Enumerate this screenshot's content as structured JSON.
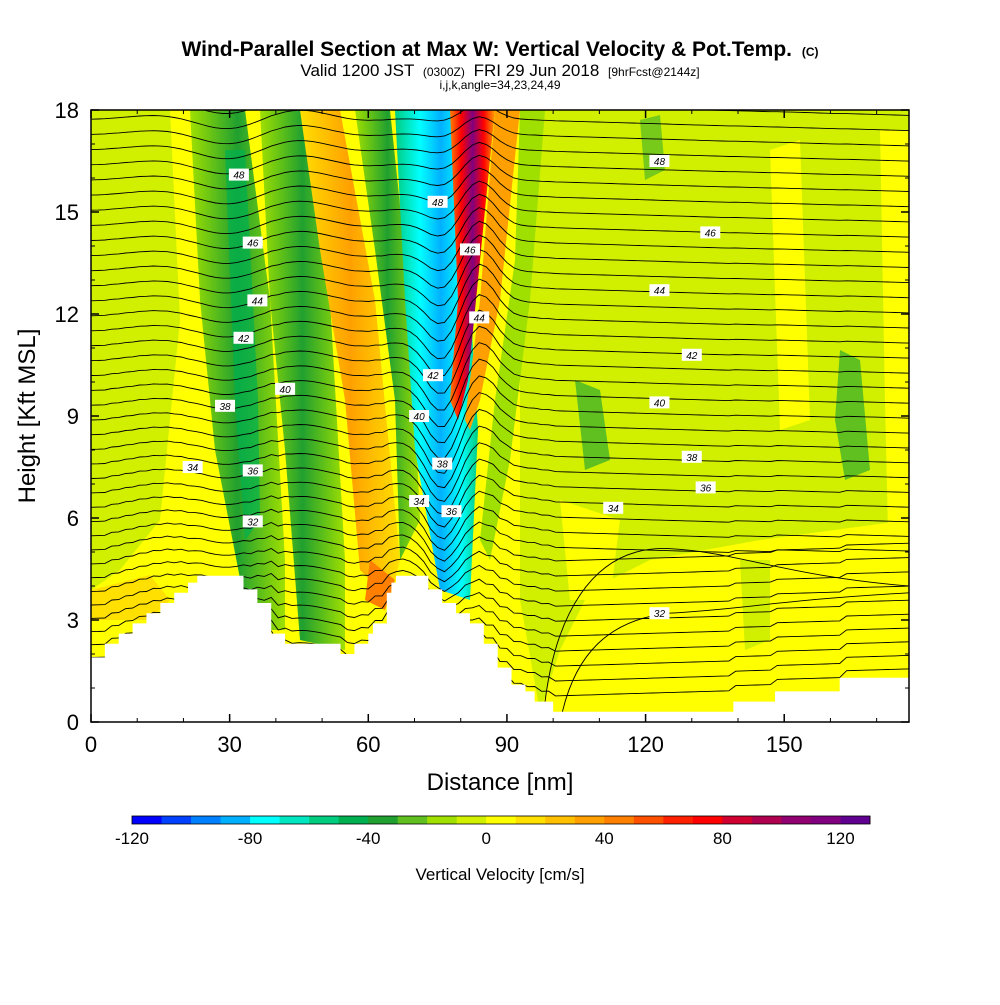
{
  "chart_data": {
    "type": "heatmap",
    "title": "Wind-Parallel Section at Max W: Vertical Velocity & Pot.Temp.",
    "title_mark": "(C)",
    "subtitle": {
      "prefix": "Valid 1200 JST",
      "utc": "(0300Z)",
      "date": "FRI 29 Jun 2018",
      "forecast": "[9hrFcst@2144z]"
    },
    "subtitle2": "i,j,k,angle=34,23,24,49",
    "xlabel": "Distance [nm]",
    "ylabel": "Height [Kft MSL]",
    "xlim": [
      0,
      177
    ],
    "ylim": [
      0,
      18
    ],
    "x_ticks": [
      0,
      30,
      60,
      90,
      120,
      150
    ],
    "y_ticks": [
      0,
      3,
      6,
      9,
      12,
      15,
      18
    ],
    "colorbar": {
      "label": "Vertical Velocity [cm/s]",
      "min": -120,
      "max": 130,
      "step": 10,
      "tick_values": [
        -120,
        -80,
        -40,
        0,
        40,
        80,
        120
      ],
      "colors": [
        "#0000ff",
        "#0040ff",
        "#0080ff",
        "#00b0ff",
        "#00ffff",
        "#00e6c0",
        "#00cc80",
        "#00b050",
        "#20a030",
        "#60c020",
        "#a0e000",
        "#d0f000",
        "#ffff00",
        "#ffe000",
        "#ffc000",
        "#ffa000",
        "#ff8000",
        "#ff5000",
        "#ff2000",
        "#ff0000",
        "#d00030",
        "#b00050",
        "#900070",
        "#800080",
        "#600090"
      ]
    },
    "velocity_bands": [
      {
        "x": [
          90,
          0
        ],
        "v": [
          -5,
          -5
        ]
      },
      {
        "x": [
          175,
          175
        ],
        "v": [
          -5,
          -5
        ]
      }
    ],
    "terrain_profile": {
      "x": [
        0,
        3,
        6,
        9,
        12,
        15,
        18,
        21,
        23,
        30,
        33,
        36,
        39,
        42,
        48,
        51,
        54,
        57,
        60,
        61,
        64,
        65,
        66,
        71,
        73,
        76,
        79,
        82,
        85,
        88,
        91,
        94,
        96,
        100,
        105,
        111,
        120,
        125,
        131,
        139,
        148,
        162,
        177
      ],
      "y": [
        1.9,
        2.3,
        2.6,
        2.9,
        3.2,
        3.5,
        3.8,
        4.1,
        4.3,
        4.3,
        3.9,
        3.5,
        2.6,
        2.3,
        2.3,
        2.3,
        2.0,
        2.3,
        2.6,
        2.9,
        3.8,
        4.1,
        4.3,
        4.3,
        3.9,
        3.5,
        3.2,
        2.9,
        2.3,
        1.6,
        1.1,
        0.9,
        0.6,
        0.3,
        0.3,
        0.3,
        0.3,
        0.3,
        0.3,
        0.6,
        0.9,
        1.3,
        1.3
      ]
    },
    "contour_labels": [
      {
        "x": 32,
        "y": 16.1,
        "text": "48"
      },
      {
        "x": 35,
        "y": 14.1,
        "text": "46"
      },
      {
        "x": 36,
        "y": 12.4,
        "text": "44"
      },
      {
        "x": 33,
        "y": 11.3,
        "text": "42"
      },
      {
        "x": 42,
        "y": 9.8,
        "text": "40"
      },
      {
        "x": 29,
        "y": 9.3,
        "text": "38"
      },
      {
        "x": 22,
        "y": 7.5,
        "text": "34"
      },
      {
        "x": 35,
        "y": 7.4,
        "text": "36"
      },
      {
        "x": 35,
        "y": 5.9,
        "text": "32"
      },
      {
        "x": 75,
        "y": 15.3,
        "text": "48"
      },
      {
        "x": 82,
        "y": 13.9,
        "text": "46"
      },
      {
        "x": 84,
        "y": 11.9,
        "text": "44"
      },
      {
        "x": 74,
        "y": 10.2,
        "text": "42"
      },
      {
        "x": 71,
        "y": 9.0,
        "text": "40"
      },
      {
        "x": 76,
        "y": 7.6,
        "text": "38"
      },
      {
        "x": 71,
        "y": 6.5,
        "text": "34"
      },
      {
        "x": 78,
        "y": 6.2,
        "text": "36"
      },
      {
        "x": 123,
        "y": 16.5,
        "text": "48"
      },
      {
        "x": 134,
        "y": 14.4,
        "text": "46"
      },
      {
        "x": 123,
        "y": 12.7,
        "text": "44"
      },
      {
        "x": 130,
        "y": 10.8,
        "text": "42"
      },
      {
        "x": 123,
        "y": 9.4,
        "text": "40"
      },
      {
        "x": 130,
        "y": 7.8,
        "text": "38"
      },
      {
        "x": 133,
        "y": 6.9,
        "text": "36"
      },
      {
        "x": 113,
        "y": 6.3,
        "text": "34"
      },
      {
        "x": 123,
        "y": 3.2,
        "text": "32"
      }
    ]
  }
}
